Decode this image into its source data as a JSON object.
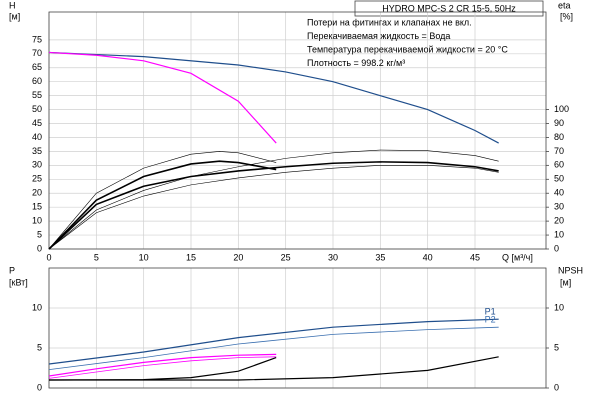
{
  "chart_data": [
    {
      "type": "line",
      "title": "HYDRO MPC-S 2 CR 15-5, 50Hz",
      "annotations": [
        "Потери на фитингах и клапанах не вкл.",
        "Перекачиваемая жидкость = Вода",
        "Температура перекачиваемой жидкости = 20 °C",
        "Плотность = 998.2 кг/м³"
      ],
      "xlabel": "Q [м³/ч]",
      "ylabel": "H",
      "yunit": "[м]",
      "y2label": "eta",
      "y2unit": "[%]",
      "xlim": [
        0,
        52.5
      ],
      "xticks": [
        0,
        5,
        10,
        15,
        20,
        25,
        30,
        35,
        40,
        45
      ],
      "ylim": [
        0,
        85
      ],
      "yticks": [
        0,
        5,
        10,
        15,
        20,
        25,
        30,
        35,
        40,
        45,
        50,
        55,
        60,
        65,
        70,
        75
      ],
      "y2lim": [
        0,
        170
      ],
      "y2ticks": [
        0,
        10,
        20,
        30,
        40,
        50,
        60,
        70,
        80,
        90,
        100
      ],
      "grid": true,
      "series": [
        {
          "color": "#1f4e8c",
          "width": 1.2,
          "x": [
            0,
            10,
            20,
            25,
            30,
            35,
            40,
            45,
            47.5
          ],
          "values": [
            70.5,
            69,
            66,
            63.5,
            60,
            55,
            50,
            42.5,
            38
          ]
        },
        {
          "color": "#ff00ff",
          "width": 1.2,
          "x": [
            0,
            5,
            10,
            15,
            20,
            24
          ],
          "values": [
            70.5,
            69.5,
            67.5,
            63,
            53,
            38
          ]
        },
        {
          "color": "#000000",
          "width": 1.6,
          "axis": "y2",
          "x": [
            0,
            5,
            10,
            15,
            20,
            25,
            30,
            35,
            40,
            45,
            47.5
          ],
          "values": [
            0,
            32,
            45,
            52,
            56,
            59,
            61.5,
            62.5,
            62,
            59,
            56
          ]
        },
        {
          "color": "#000000",
          "width": 0.6,
          "axis": "y2",
          "x": [
            0,
            5,
            10,
            15,
            20,
            25,
            30,
            35,
            40,
            45,
            47.5
          ],
          "values": [
            0,
            28,
            42,
            52,
            59,
            65,
            69,
            71,
            70.5,
            67,
            63
          ]
        },
        {
          "color": "#000000",
          "width": 0.6,
          "axis": "y2",
          "x": [
            0,
            5,
            10,
            15,
            20,
            25,
            30,
            35,
            40,
            45,
            47.5
          ],
          "values": [
            0,
            26,
            38,
            46,
            51,
            55,
            58,
            60,
            60,
            58,
            55
          ]
        },
        {
          "color": "#000000",
          "width": 1.6,
          "axis": "y2",
          "x": [
            0,
            5,
            10,
            15,
            18,
            20,
            24
          ],
          "values": [
            0,
            35,
            52,
            61,
            63,
            62,
            57
          ]
        },
        {
          "color": "#000000",
          "width": 0.6,
          "axis": "y2",
          "x": [
            0,
            5,
            10,
            15,
            18,
            20,
            24
          ],
          "values": [
            0,
            40,
            58,
            68,
            70,
            69,
            62
          ]
        }
      ]
    },
    {
      "type": "line",
      "ylabel": "P",
      "yunit": "[кВт]",
      "y2label": "NPSH",
      "y2unit": "[м]",
      "xlim": [
        0,
        52.5
      ],
      "ylim": [
        0,
        15
      ],
      "yticks": [
        0,
        5,
        10
      ],
      "y2lim": [
        0,
        15
      ],
      "y2ticks": [
        0,
        5,
        10
      ],
      "grid": true,
      "series": [
        {
          "label": "P1",
          "color": "#1f4e8c",
          "width": 1.2,
          "x": [
            0,
            10,
            20,
            30,
            40,
            47.5
          ],
          "values": [
            3,
            4.5,
            6.3,
            7.6,
            8.3,
            8.6
          ]
        },
        {
          "label": "P2",
          "color": "#3a6fb0",
          "width": 0.8,
          "x": [
            0,
            10,
            20,
            30,
            40,
            47.5
          ],
          "values": [
            2.3,
            3.8,
            5.5,
            6.7,
            7.3,
            7.6
          ]
        },
        {
          "color": "#ff00ff",
          "width": 1.2,
          "x": [
            0,
            5,
            10,
            15,
            20,
            24
          ],
          "values": [
            1.5,
            2.4,
            3.2,
            3.8,
            4.1,
            4.2
          ]
        },
        {
          "color": "#ff00ff",
          "width": 0.8,
          "x": [
            0,
            5,
            10,
            15,
            20,
            24
          ],
          "values": [
            1.2,
            2,
            2.8,
            3.4,
            3.8,
            3.9
          ]
        },
        {
          "color": "#000000",
          "width": 1.2,
          "axis": "y2",
          "x": [
            0,
            10,
            15,
            20,
            24
          ],
          "values": [
            1,
            1.05,
            1.3,
            2.1,
            3.8
          ]
        },
        {
          "color": "#000000",
          "width": 1.2,
          "axis": "y2",
          "x": [
            0,
            20,
            30,
            40,
            47.5
          ],
          "values": [
            1,
            1,
            1.3,
            2.2,
            3.9
          ]
        }
      ]
    }
  ]
}
